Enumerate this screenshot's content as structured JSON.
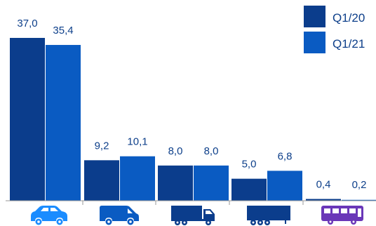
{
  "chart_data": {
    "type": "bar",
    "categories": [
      "car",
      "van",
      "truck",
      "trailer",
      "bus"
    ],
    "category_icons": [
      "car-icon",
      "van-icon",
      "truck-icon",
      "trailer-icon",
      "bus-icon"
    ],
    "series": [
      {
        "name": "Q1/20",
        "values": [
          37.0,
          9.2,
          8.0,
          5.0,
          0.4
        ],
        "color": "#0b3d8c"
      },
      {
        "name": "Q1/21",
        "values": [
          35.4,
          10.1,
          8.0,
          6.8,
          0.2
        ],
        "color": "#0a5bc2"
      }
    ],
    "value_labels": [
      [
        "37,0",
        "9,2",
        "8,0",
        "5,0",
        "0,4"
      ],
      [
        "35,4",
        "10,1",
        "8,0",
        "6,8",
        "0,2"
      ]
    ],
    "ylim": [
      0,
      37.0
    ],
    "legend_position": "top-right",
    "grid": false,
    "icon_colors": [
      "#1a8cff",
      "#0a5bc2",
      "#0b3d8c",
      "#0b3d8c",
      "#6a37b8"
    ],
    "label_color": "#0d3f8a"
  }
}
